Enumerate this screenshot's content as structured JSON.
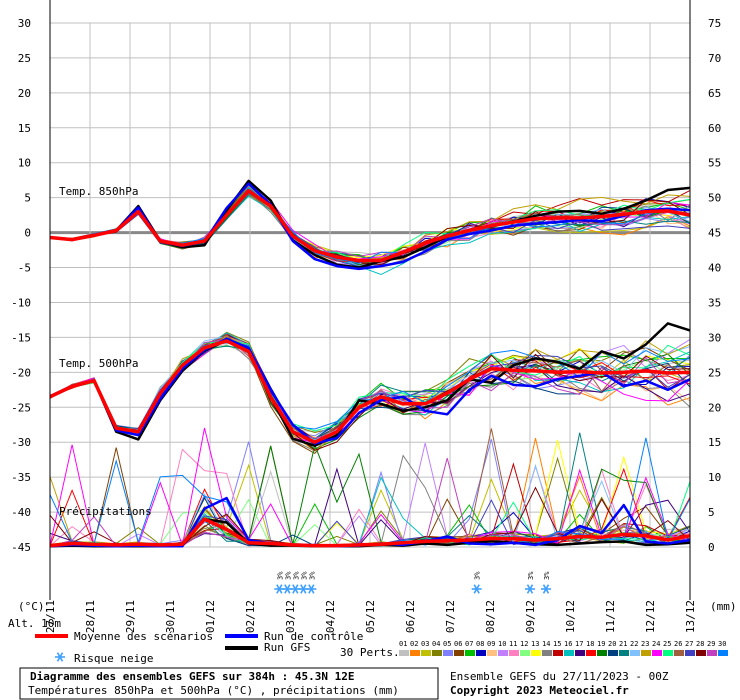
{
  "chart_data": {
    "type": "line",
    "title": "Diagramme des ensembles GEFS sur 384h : 45.3N 12E",
    "subtitle": "Températures 850hPa et 500hPa (°C) , précipitations (mm)",
    "run_info": "Ensemble GEFS du 27/11/2023 - 00Z",
    "copyright": "Copyright 2023 Meteociel.fr",
    "left_axis_unit": "(°C)",
    "right_axis_unit": "(mm)",
    "alt_label": "Alt. 10m",
    "left_ticks": [
      "30",
      "25",
      "20",
      "15",
      "10",
      "5",
      "0",
      "-5",
      "-10",
      "-15",
      "-20",
      "-25",
      "-30",
      "-35",
      "-40",
      "-45"
    ],
    "right_ticks": [
      "75",
      "70",
      "65",
      "60",
      "55",
      "50",
      "45",
      "40",
      "35",
      "30",
      "25",
      "20",
      "15",
      "10",
      "5",
      "0"
    ],
    "ylim_temp": [
      -45,
      30
    ],
    "ylim_precip": [
      0,
      75
    ],
    "dates": [
      "27/11",
      "28/11",
      "29/11",
      "30/11",
      "01/12",
      "02/12",
      "03/12",
      "04/12",
      "05/12",
      "06/12",
      "07/12",
      "08/12",
      "09/12",
      "10/12",
      "11/12",
      "12/12",
      "13/12"
    ],
    "panels": {
      "t850": "Temp. 850hPa",
      "t500": "Temp. 500hPa",
      "precip": "Précipitations"
    },
    "legend": {
      "mean": "Moyenne des scénarios",
      "control": "Run de contrôle",
      "gfs": "Run GFS",
      "snow": "Risque neige",
      "perts_label": "30 Perts."
    },
    "snow_mark_text": "3%",
    "perturbations": [
      "01",
      "02",
      "03",
      "04",
      "05",
      "06",
      "07",
      "08",
      "09",
      "10",
      "11",
      "12",
      "13",
      "14",
      "15",
      "16",
      "17",
      "18",
      "19",
      "20",
      "21",
      "22",
      "23",
      "24",
      "25",
      "26",
      "27",
      "28",
      "29",
      "30"
    ],
    "pert_colors": [
      "#c0c0c0",
      "#ff8000",
      "#c0c000",
      "#808000",
      "#8080ff",
      "#804000",
      "#00c000",
      "#0000c0",
      "#ffc080",
      "#c080ff",
      "#ff80c0",
      "#80ff80",
      "#ffff00",
      "#808080",
      "#c00000",
      "#00c0c0",
      "#400080",
      "#ff0000",
      "#008000",
      "#004080",
      "#008080",
      "#80c0ff",
      "#c0a000",
      "#ff00ff",
      "#00ff80",
      "#a06040",
      "#4040c0",
      "#800000",
      "#c040c0",
      "#0080ff"
    ],
    "series_colors": {
      "mean": "#ff0000",
      "control": "#0000ff",
      "gfs": "#000000"
    },
    "series": {
      "t850_mean": [
        -0.7,
        -1.0,
        -0.4,
        0.3,
        3.0,
        -1.2,
        -1.8,
        -1.2,
        2.5,
        6.0,
        3.8,
        -0.5,
        -2.6,
        -3.5,
        -4.0,
        -4.0,
        -2.8,
        -1.5,
        -0.5,
        0.3,
        1.0,
        1.5,
        2.0,
        2.1,
        2.1,
        2.3,
        2.6,
        3.0,
        3.1,
        2.5
      ],
      "t850_control": [
        -0.7,
        -1.0,
        -0.4,
        0.3,
        3.6,
        -1.3,
        -1.9,
        -1.3,
        3.5,
        7.0,
        4.0,
        -1.2,
        -3.8,
        -4.8,
        -5.2,
        -4.8,
        -4.2,
        -2.7,
        -1.0,
        -0.2,
        0.3,
        1.0,
        1.3,
        1.5,
        1.8,
        1.6,
        2.4,
        3.2,
        3.4,
        3.2
      ],
      "t850_gfs": [
        -0.7,
        -1.0,
        -0.4,
        0.3,
        3.8,
        -1.2,
        -2.1,
        -1.8,
        3.2,
        7.4,
        4.6,
        -1.1,
        -3.2,
        -4.6,
        -5.0,
        -4.1,
        -3.5,
        -2.1,
        -0.6,
        0.4,
        0.9,
        1.6,
        2.4,
        3.0,
        3.1,
        2.7,
        3.4,
        4.6,
        6.1,
        6.4
      ],
      "t500_mean": [
        -23.5,
        -22.0,
        -21.2,
        -28.0,
        -28.5,
        -23.0,
        -19.0,
        -16.5,
        -15.5,
        -17.0,
        -23.5,
        -28.5,
        -30.0,
        -28.5,
        -25.0,
        -23.5,
        -24.5,
        -24.5,
        -23.0,
        -21.0,
        -19.5,
        -19.7,
        -19.8,
        -20.0,
        -19.9,
        -20.1,
        -20.0,
        -19.8,
        -20.1,
        -20.0
      ],
      "t500_control": [
        -23.5,
        -22.0,
        -21.2,
        -28.3,
        -29.0,
        -23.8,
        -19.5,
        -16.8,
        -15.2,
        -16.5,
        -22.6,
        -27.5,
        -30.2,
        -29.4,
        -25.8,
        -24.0,
        -23.5,
        -25.5,
        -26.0,
        -22.5,
        -20.5,
        -21.8,
        -22.0,
        -21.0,
        -20.5,
        -20.0,
        -22.0,
        -21.2,
        -22.5,
        -21.0
      ],
      "t500_gfs": [
        -23.5,
        -22.0,
        -21.2,
        -28.5,
        -29.6,
        -24.0,
        -19.8,
        -16.9,
        -15.4,
        -17.0,
        -23.5,
        -29.5,
        -30.5,
        -29.0,
        -24.0,
        -24.5,
        -25.5,
        -25.0,
        -24.0,
        -21.0,
        -21.5,
        -19.0,
        -18.0,
        -18.5,
        -19.5,
        -17.0,
        -18.0,
        -16.0,
        -13.0,
        -14.0
      ],
      "precip_mean": [
        0.2,
        0.5,
        0.4,
        0.3,
        0.4,
        0.3,
        0.4,
        4.0,
        2.5,
        0.6,
        0.5,
        0.3,
        0.2,
        0.2,
        0.3,
        0.4,
        0.6,
        0.8,
        0.9,
        1.0,
        1.2,
        1.2,
        1.0,
        1.2,
        1.5,
        1.4,
        1.8,
        1.6,
        1.0,
        1.6
      ],
      "precip_control": [
        0.1,
        0.3,
        0.2,
        0.1,
        0.2,
        0.1,
        0.1,
        5.5,
        7.0,
        1.0,
        0.5,
        0.3,
        0.2,
        0.1,
        0.2,
        0.5,
        0.3,
        0.8,
        1.5,
        0.5,
        0.4,
        0.6,
        0.3,
        1.0,
        3.0,
        2.0,
        6.0,
        0.8,
        0.5,
        1.0
      ],
      "precip_gfs": [
        0.1,
        0.2,
        0.1,
        0.1,
        0.1,
        0.1,
        0.2,
        4.0,
        3.5,
        0.5,
        0.2,
        0.2,
        0.1,
        0.1,
        0.1,
        0.3,
        0.2,
        0.5,
        0.3,
        0.6,
        0.8,
        0.6,
        0.4,
        0.3,
        0.5,
        0.7,
        0.8,
        0.3,
        0.4,
        0.6
      ]
    }
  }
}
